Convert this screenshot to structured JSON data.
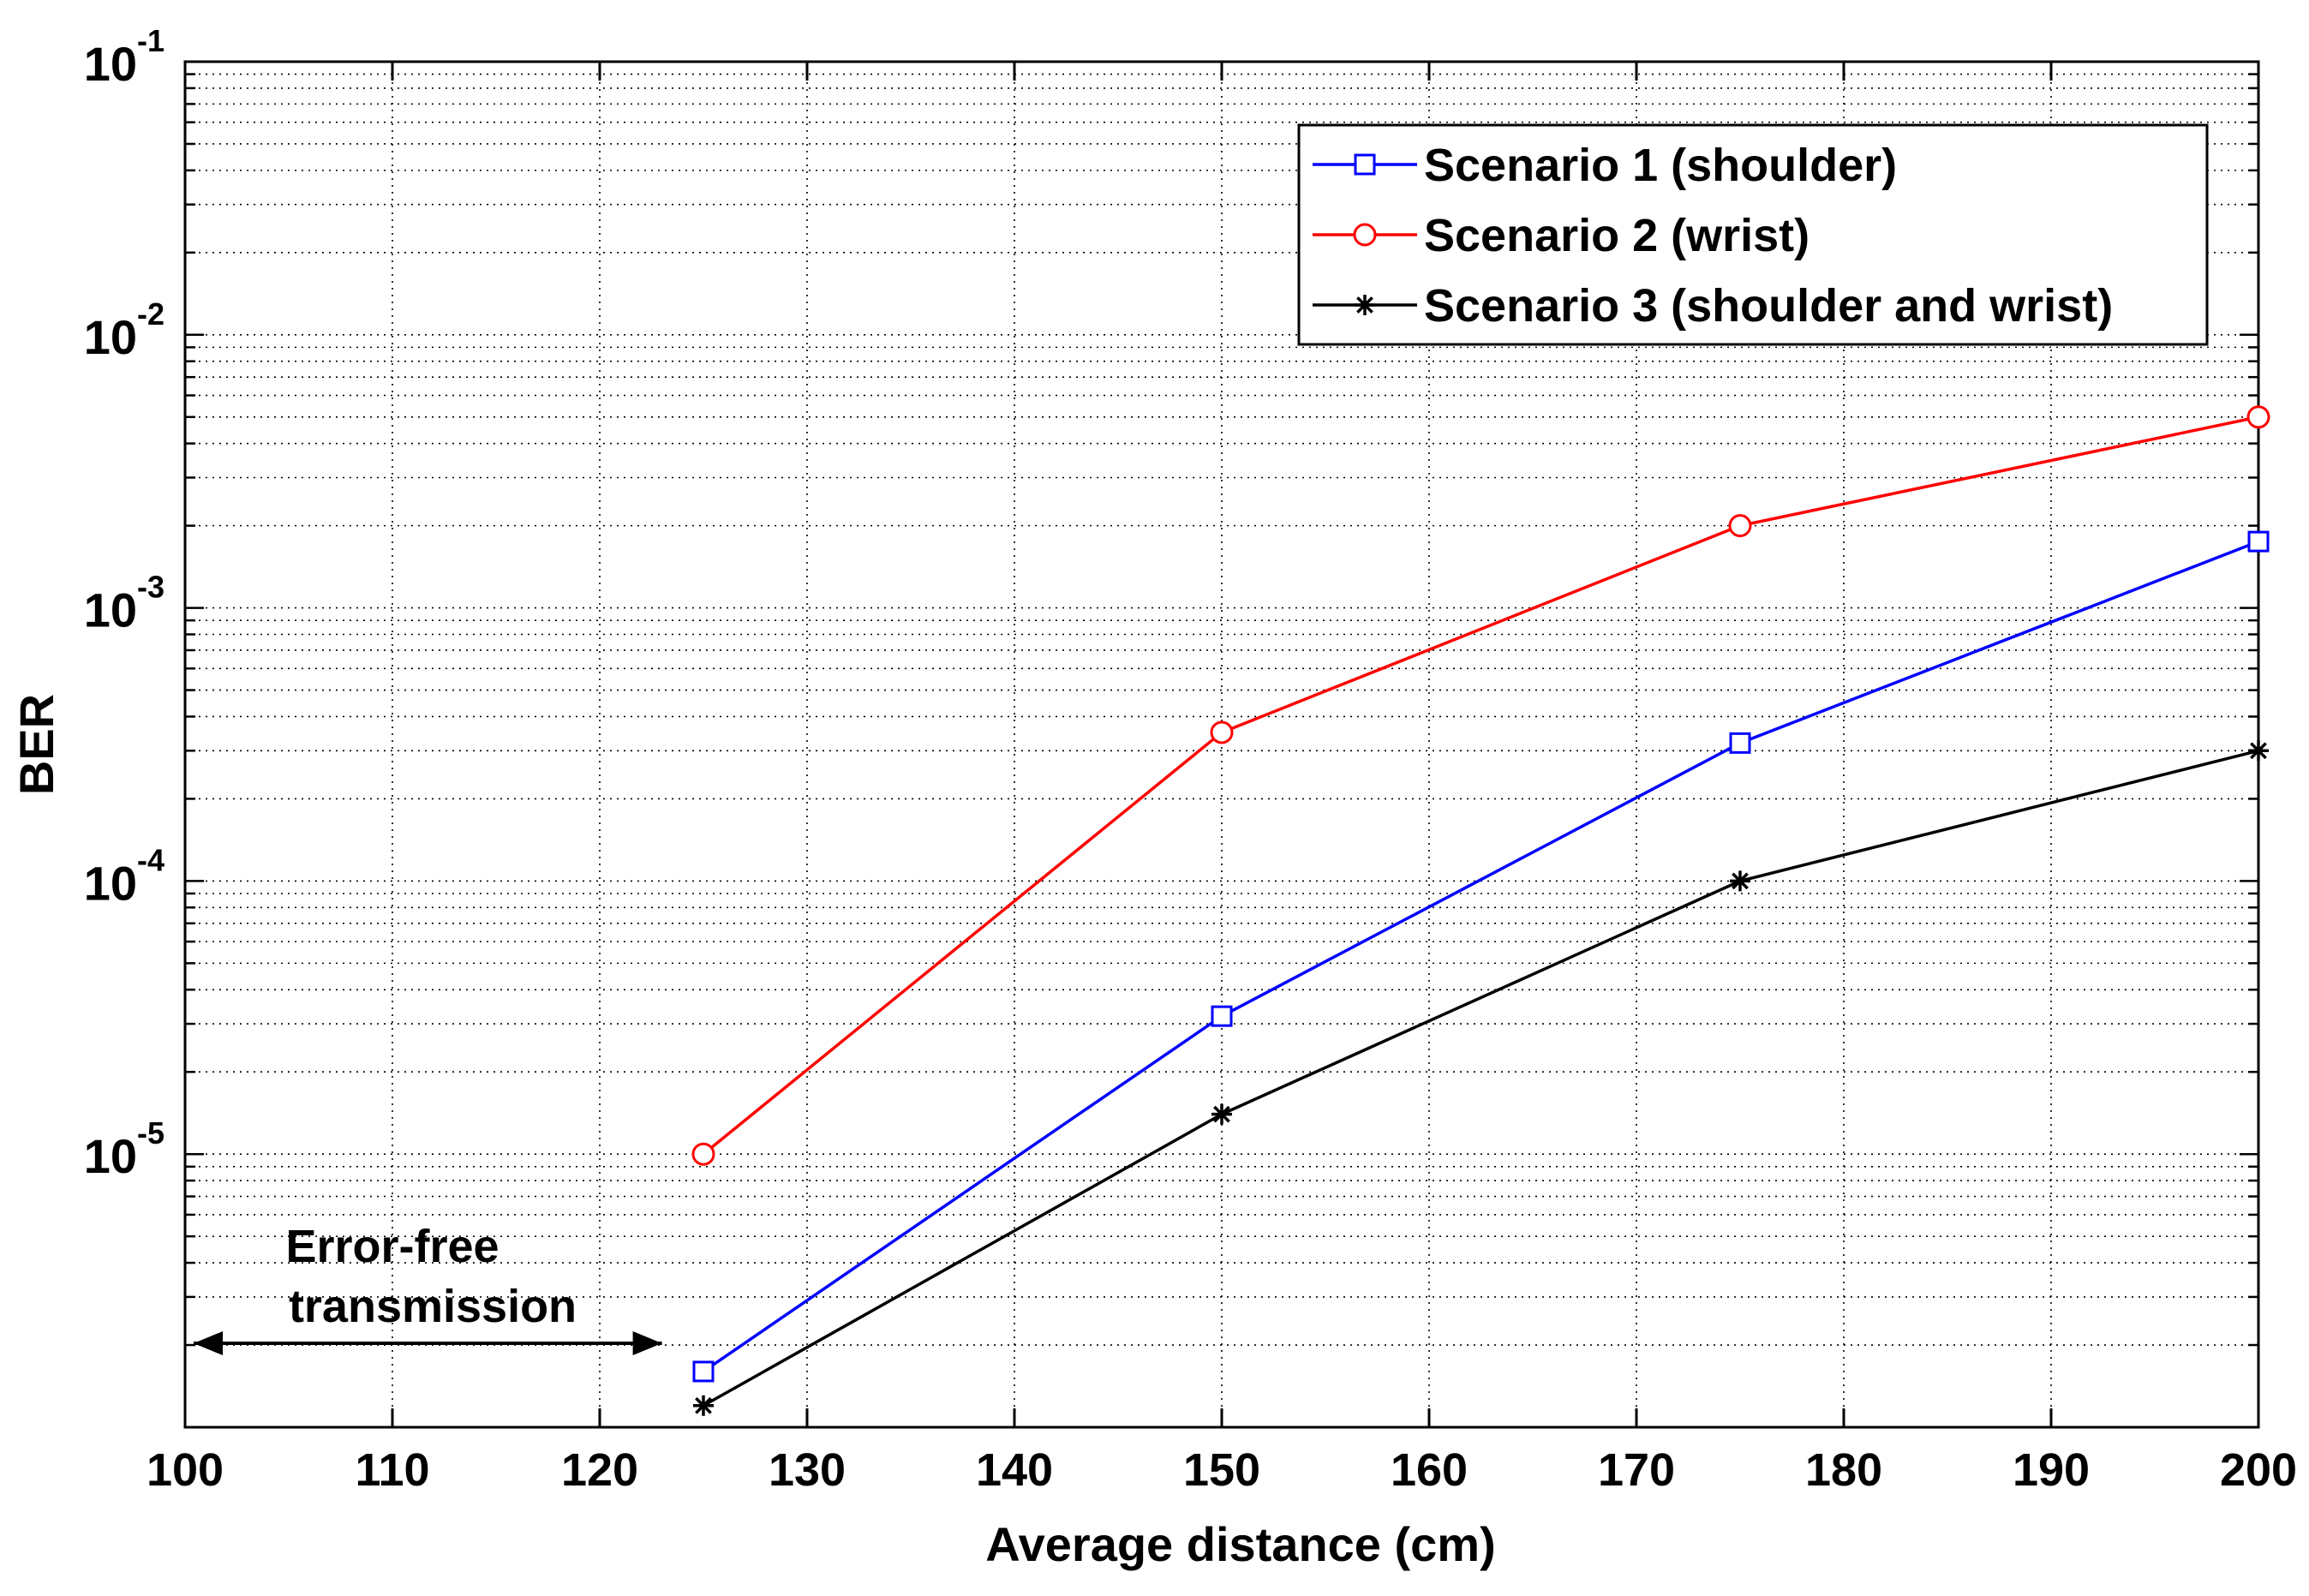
{
  "chart_data": {
    "type": "line",
    "title": "",
    "xlabel": "Average distance (cm)",
    "ylabel": "BER",
    "xlim": [
      100,
      200
    ],
    "ylim": [
      1e-06,
      0.1
    ],
    "yscale": "log",
    "grid": true,
    "legend_position": "top-right",
    "x_ticks": [
      {
        "value": 100,
        "label": "100"
      },
      {
        "value": 110,
        "label": "110"
      },
      {
        "value": 120,
        "label": "120"
      },
      {
        "value": 130,
        "label": "130"
      },
      {
        "value": 140,
        "label": "140"
      },
      {
        "value": 150,
        "label": "150"
      },
      {
        "value": 160,
        "label": "160"
      },
      {
        "value": 170,
        "label": "170"
      },
      {
        "value": 180,
        "label": "180"
      },
      {
        "value": 190,
        "label": "190"
      },
      {
        "value": 200,
        "label": "200"
      }
    ],
    "y_ticks": [
      {
        "value": 1e-05,
        "base": "10",
        "exp": "-5"
      },
      {
        "value": 0.0001,
        "base": "10",
        "exp": "-4"
      },
      {
        "value": 0.001,
        "base": "10",
        "exp": "-3"
      },
      {
        "value": 0.01,
        "base": "10",
        "exp": "-2"
      },
      {
        "value": 0.1,
        "base": "10",
        "exp": "-1"
      }
    ],
    "x": [
      125,
      150,
      175,
      200
    ],
    "series": [
      {
        "name": "Scenario 1 (shoulder)",
        "color": "#0000ff",
        "marker": "square",
        "values": [
          1.6e-06,
          3.2e-05,
          0.00032,
          0.00175
        ]
      },
      {
        "name": "Scenario 2 (wrist)",
        "color": "#ff0000",
        "marker": "circle",
        "values": [
          1e-05,
          0.00035,
          0.002,
          0.005
        ]
      },
      {
        "name": "Scenario 3 (shoulder and wrist)",
        "color": "#000000",
        "marker": "asterisk",
        "values": [
          1.2e-06,
          1.4e-05,
          0.0001,
          0.0003
        ]
      }
    ],
    "annotation": {
      "line1": "Error-free",
      "line2": "transmission",
      "arrow_x_range": [
        100,
        123
      ]
    }
  }
}
